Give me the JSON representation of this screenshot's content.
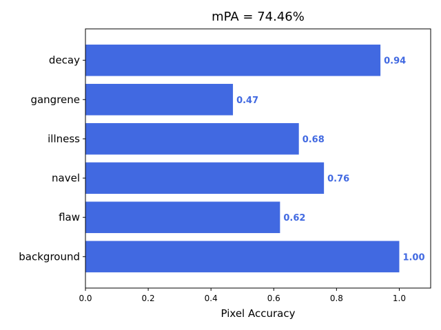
{
  "chart_data": {
    "type": "bar",
    "orientation": "horizontal",
    "title": "mPA = 74.46%",
    "xlabel": "Pixel Accuracy",
    "ylabel": "",
    "categories": [
      "background",
      "flaw",
      "navel",
      "illness",
      "gangrene",
      "decay"
    ],
    "values": [
      1.0,
      0.62,
      0.76,
      0.68,
      0.47,
      0.94
    ],
    "value_labels": [
      "1.00",
      "0.62",
      "0.76",
      "0.68",
      "0.47",
      "0.94"
    ],
    "xlim": [
      0,
      1.1
    ],
    "xticks": [
      0.0,
      0.2,
      0.4,
      0.6,
      0.8,
      1.0
    ],
    "xtick_labels": [
      "0.0",
      "0.2",
      "0.4",
      "0.6",
      "0.8",
      "1.0"
    ],
    "bar_color": "#4169e1",
    "label_color": "#4169e1",
    "grid": false
  }
}
